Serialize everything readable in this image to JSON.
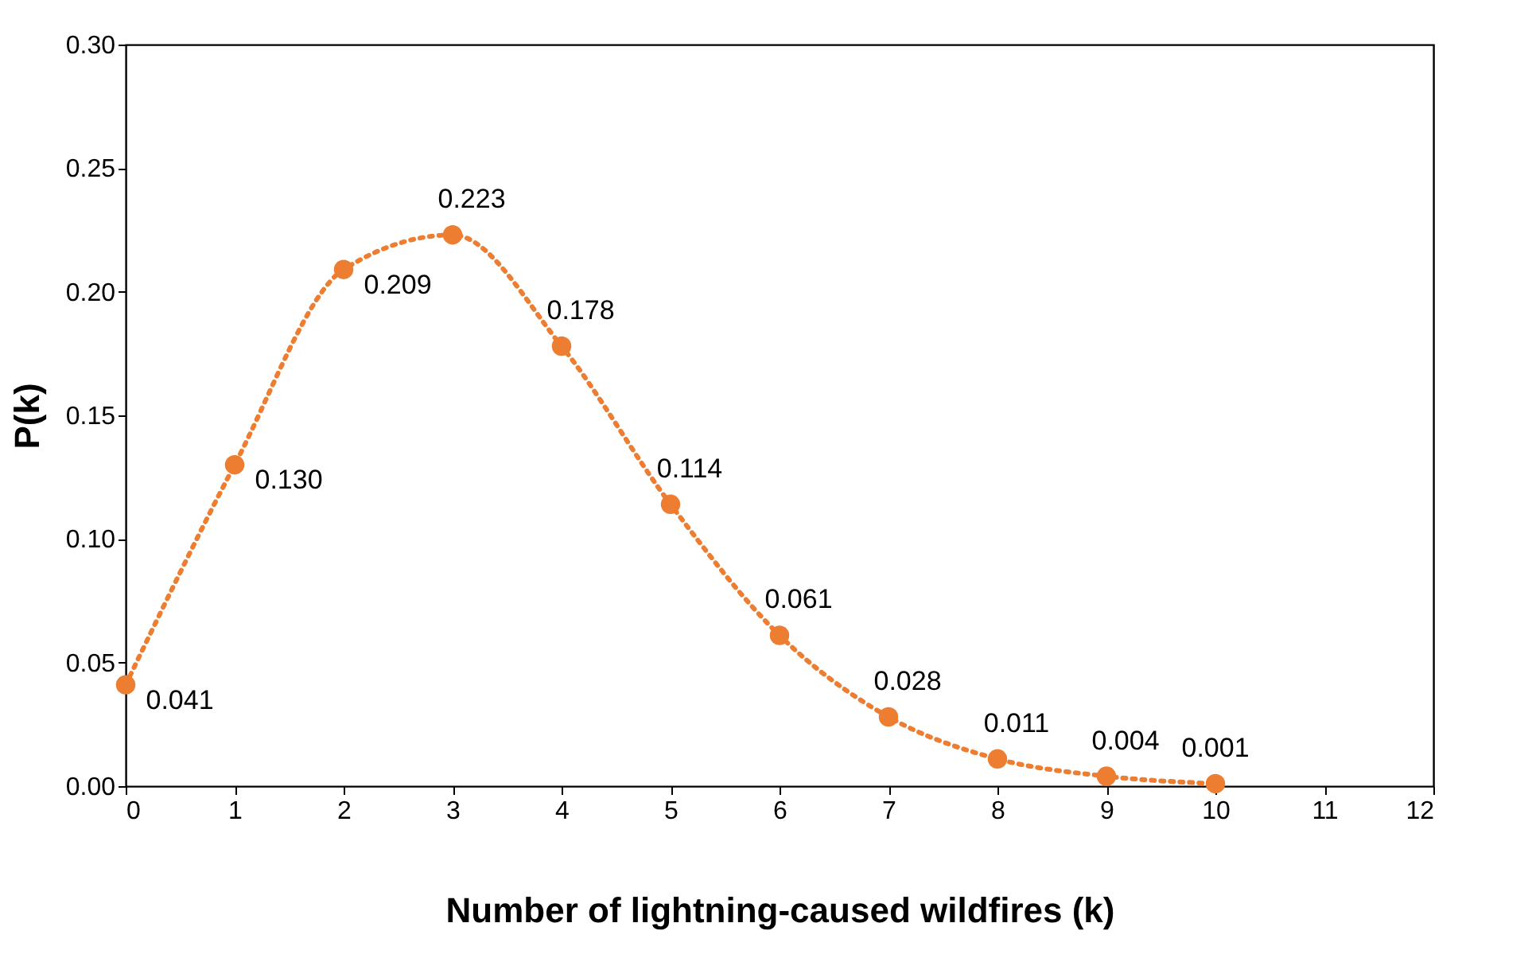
{
  "chart_data": {
    "type": "line",
    "xlabel": "Number of lightning-caused wildfires (k)",
    "ylabel": "P(k)",
    "x": [
      0,
      1,
      2,
      3,
      4,
      5,
      6,
      7,
      8,
      9,
      10
    ],
    "series": [
      {
        "color": "#ed7d31",
        "values": [
          0.041,
          0.13,
          0.209,
          0.223,
          0.178,
          0.114,
          0.061,
          0.028,
          0.011,
          0.004,
          0.001
        ],
        "value_labels": [
          "0.041",
          "0.130",
          "0.209",
          "0.223",
          "0.178",
          "0.114",
          "0.061",
          "0.028",
          "0.011",
          "0.004",
          "0.001"
        ]
      }
    ],
    "xlim": [
      0,
      12
    ],
    "xticks": [
      0,
      1,
      2,
      3,
      4,
      5,
      6,
      7,
      8,
      9,
      10,
      11,
      12
    ],
    "ylim": [
      0,
      0.3
    ],
    "yticks": [
      {
        "value": 0,
        "label": "0.00"
      },
      {
        "value": 0.05,
        "label": "0.05"
      },
      {
        "value": 0.1,
        "label": "0.10"
      },
      {
        "value": 0.15,
        "label": "0.15"
      },
      {
        "value": 0.2,
        "label": "0.20"
      },
      {
        "value": 0.25,
        "label": "0.25"
      },
      {
        "value": 0.3,
        "label": "0.30"
      }
    ],
    "grid": false,
    "marker": "circle",
    "line_style": "dotted"
  }
}
